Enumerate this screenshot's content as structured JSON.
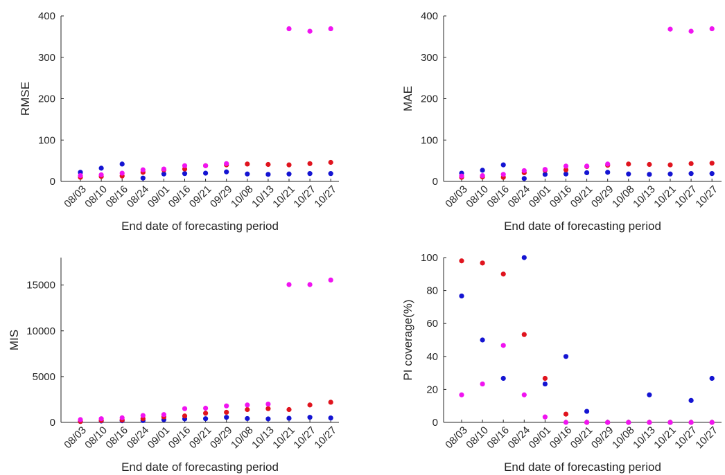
{
  "colors": {
    "blue": "#1414d2",
    "red": "#e0141e",
    "magenta": "#f014f0",
    "axis": "#262626"
  },
  "chart_data": [
    {
      "type": "scatter",
      "ylabel": "RMSE",
      "xlabel": "End date of forecasting period",
      "categories": [
        "08/03",
        "08/10",
        "08/16",
        "08/24",
        "09/01",
        "09/16",
        "09/21",
        "09/29",
        "10/08",
        "10/13",
        "10/21",
        "10/27",
        "10/27"
      ],
      "ylim": [
        0,
        400
      ],
      "yticks": [
        0,
        100,
        200,
        300,
        400
      ],
      "series": [
        {
          "color": "blue",
          "values": [
            22,
            32,
            42,
            8,
            18,
            19,
            20,
            23,
            18,
            17,
            18,
            19,
            19
          ]
        },
        {
          "color": "red",
          "values": [
            10,
            12,
            13,
            22,
            28,
            30,
            38,
            40,
            42,
            41,
            40,
            43,
            46
          ]
        },
        {
          "color": "magenta",
          "values": [
            14,
            16,
            20,
            28,
            30,
            38,
            38,
            43,
            null,
            null,
            369,
            363,
            369
          ]
        }
      ]
    },
    {
      "type": "scatter",
      "ylabel": "MAE",
      "xlabel": "End date of forecasting period",
      "categories": [
        "08/03",
        "08/10",
        "08/16",
        "08/24",
        "09/01",
        "09/16",
        "09/21",
        "09/29",
        "10/08",
        "10/13",
        "10/21",
        "10/27",
        "10/27"
      ],
      "ylim": [
        0,
        400
      ],
      "yticks": [
        0,
        100,
        200,
        300,
        400
      ],
      "series": [
        {
          "color": "blue",
          "values": [
            20,
            27,
            40,
            7,
            17,
            18,
            21,
            22,
            18,
            17,
            18,
            19,
            19
          ]
        },
        {
          "color": "red",
          "values": [
            10,
            11,
            10,
            21,
            27,
            28,
            36,
            39,
            42,
            41,
            40,
            43,
            44
          ]
        },
        {
          "color": "magenta",
          "values": [
            13,
            14,
            17,
            26,
            29,
            37,
            37,
            42,
            null,
            null,
            368,
            363,
            369
          ]
        }
      ]
    },
    {
      "type": "scatter",
      "ylabel": "MIS",
      "xlabel": "End date of forecasting period",
      "categories": [
        "08/03",
        "08/10",
        "08/16",
        "08/24",
        "09/01",
        "09/16",
        "09/21",
        "09/29",
        "10/08",
        "10/13",
        "10/21",
        "10/27",
        "10/27"
      ],
      "ylim": [
        0,
        18000
      ],
      "yticks": [
        0,
        5000,
        10000,
        15000
      ],
      "series": [
        {
          "color": "blue",
          "values": [
            100,
            150,
            180,
            200,
            300,
            380,
            400,
            550,
            420,
            380,
            450,
            550,
            480
          ]
        },
        {
          "color": "red",
          "values": [
            100,
            200,
            250,
            400,
            600,
            700,
            1000,
            1100,
            1400,
            1500,
            1400,
            1900,
            2200
          ]
        },
        {
          "color": "magenta",
          "values": [
            300,
            400,
            500,
            750,
            850,
            1500,
            1550,
            1800,
            1900,
            2000,
            15050,
            15050,
            15550
          ]
        }
      ]
    },
    {
      "type": "scatter",
      "ylabel": "PI coverage(%)",
      "xlabel": "End date of forecasting period",
      "categories": [
        "08/03",
        "08/10",
        "08/16",
        "08/24",
        "09/01",
        "09/16",
        "09/21",
        "09/29",
        "10/08",
        "10/13",
        "10/21",
        "10/27",
        "10/27"
      ],
      "ylim": [
        0,
        100
      ],
      "yticks": [
        0,
        20,
        40,
        60,
        80,
        100
      ],
      "series": [
        {
          "color": "blue",
          "values": [
            76.7,
            50,
            26.7,
            100,
            23.3,
            40,
            6.7,
            0,
            0,
            16.7,
            0,
            13.3,
            26.7
          ]
        },
        {
          "color": "red",
          "values": [
            98,
            96.7,
            90,
            53.3,
            26.7,
            5,
            0,
            0,
            0,
            0,
            0,
            0,
            0
          ]
        },
        {
          "color": "magenta",
          "values": [
            16.7,
            23.3,
            46.7,
            16.7,
            3.3,
            0,
            0,
            0,
            0,
            0,
            0,
            0,
            0
          ]
        }
      ]
    }
  ]
}
